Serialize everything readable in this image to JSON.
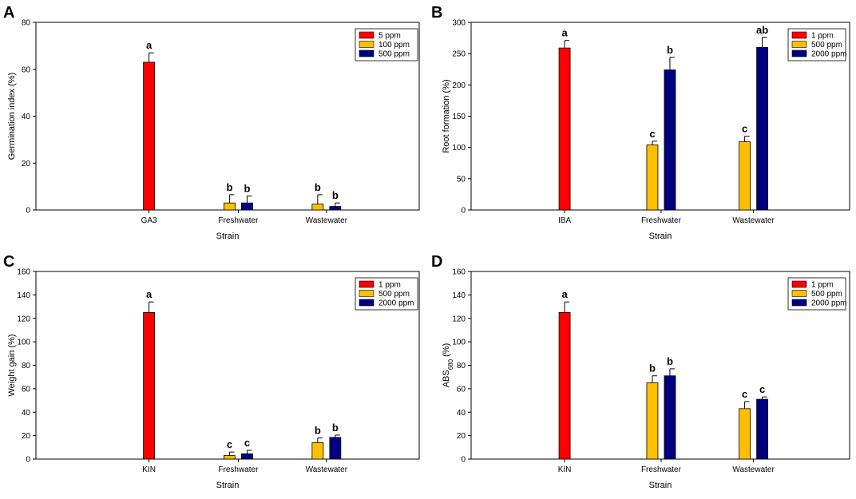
{
  "colors": {
    "red": "#ff0000",
    "yellow": "#ffbf00",
    "navy": "#000080"
  },
  "chart_data": [
    {
      "panel": "A",
      "type": "bar",
      "xlabel": "Strain",
      "ylabel": "Germination index (%)",
      "ylim": [
        0,
        80
      ],
      "yticks": [
        0,
        20,
        40,
        60,
        80
      ],
      "categories": [
        "GA3",
        "Freshwater",
        "Wastewater"
      ],
      "legend_position": "top-right",
      "series": [
        {
          "name": "5 ppm",
          "color": "#ff0000",
          "values": [
            63,
            null,
            null
          ],
          "errors": [
            4,
            null,
            null
          ],
          "letters": [
            "a",
            null,
            null
          ]
        },
        {
          "name": "100 ppm",
          "color": "#ffbf00",
          "values": [
            null,
            3,
            2.5
          ],
          "errors": [
            null,
            3.5,
            4
          ],
          "letters": [
            null,
            "b",
            "b"
          ]
        },
        {
          "name": "500 ppm",
          "color": "#000080",
          "values": [
            null,
            3,
            1.5
          ],
          "errors": [
            null,
            3,
            1.5
          ],
          "letters": [
            null,
            "b",
            "b"
          ]
        }
      ]
    },
    {
      "panel": "B",
      "type": "bar",
      "xlabel": "Strain",
      "ylabel": "Root formation (%)",
      "ylim": [
        0,
        300
      ],
      "yticks": [
        0,
        50,
        100,
        150,
        200,
        250,
        300
      ],
      "categories": [
        "IBA",
        "Freshwater",
        "Wastewater"
      ],
      "legend_position": "top-right",
      "series": [
        {
          "name": "1 ppm",
          "color": "#ff0000",
          "values": [
            259,
            null,
            null
          ],
          "errors": [
            12,
            null,
            null
          ],
          "letters": [
            "a",
            null,
            null
          ]
        },
        {
          "name": "500 ppm",
          "color": "#ffbf00",
          "values": [
            null,
            104,
            109
          ],
          "errors": [
            null,
            6,
            9
          ],
          "letters": [
            null,
            "c",
            "c"
          ]
        },
        {
          "name": "2000 ppm",
          "color": "#000080",
          "values": [
            null,
            224,
            260
          ],
          "errors": [
            null,
            20,
            16
          ],
          "letters": [
            null,
            "b",
            "ab"
          ]
        }
      ]
    },
    {
      "panel": "C",
      "type": "bar",
      "xlabel": "Strain",
      "ylabel": "Weight gain (%)",
      "ylim": [
        0,
        160
      ],
      "yticks": [
        0,
        20,
        40,
        60,
        80,
        100,
        120,
        140,
        160
      ],
      "categories": [
        "KIN",
        "Freshwater",
        "Wastewater"
      ],
      "legend_position": "top-right",
      "series": [
        {
          "name": "1 ppm",
          "color": "#ff0000",
          "values": [
            125,
            null,
            null
          ],
          "errors": [
            9,
            null,
            null
          ],
          "letters": [
            "a",
            null,
            null
          ]
        },
        {
          "name": "500 ppm",
          "color": "#ffbf00",
          "values": [
            null,
            3,
            14
          ],
          "errors": [
            null,
            3,
            4
          ],
          "letters": [
            null,
            "c",
            "b"
          ]
        },
        {
          "name": "2000 ppm",
          "color": "#000080",
          "values": [
            null,
            4.5,
            18.5
          ],
          "errors": [
            null,
            3,
            2
          ],
          "letters": [
            null,
            "c",
            "b"
          ]
        }
      ]
    },
    {
      "panel": "D",
      "type": "bar",
      "xlabel": "Strain",
      "ylabel": "ABS",
      "ylabel_sub": "680",
      "ylabel_suffix": " (%)",
      "ylim": [
        0,
        160
      ],
      "yticks": [
        0,
        20,
        40,
        60,
        80,
        100,
        120,
        140,
        160
      ],
      "categories": [
        "KIN",
        "Freshwater",
        "Wastewater"
      ],
      "legend_position": "top-right",
      "series": [
        {
          "name": "1 ppm",
          "color": "#ff0000",
          "values": [
            125,
            null,
            null
          ],
          "errors": [
            9,
            null,
            null
          ],
          "letters": [
            "a",
            null,
            null
          ]
        },
        {
          "name": "500 ppm",
          "color": "#ffbf00",
          "values": [
            null,
            65,
            43
          ],
          "errors": [
            null,
            6,
            6
          ],
          "letters": [
            null,
            "b",
            "c"
          ]
        },
        {
          "name": "2000 ppm",
          "color": "#000080",
          "values": [
            null,
            71,
            51
          ],
          "errors": [
            null,
            6,
            2
          ],
          "letters": [
            null,
            "b",
            "c"
          ]
        }
      ]
    }
  ]
}
